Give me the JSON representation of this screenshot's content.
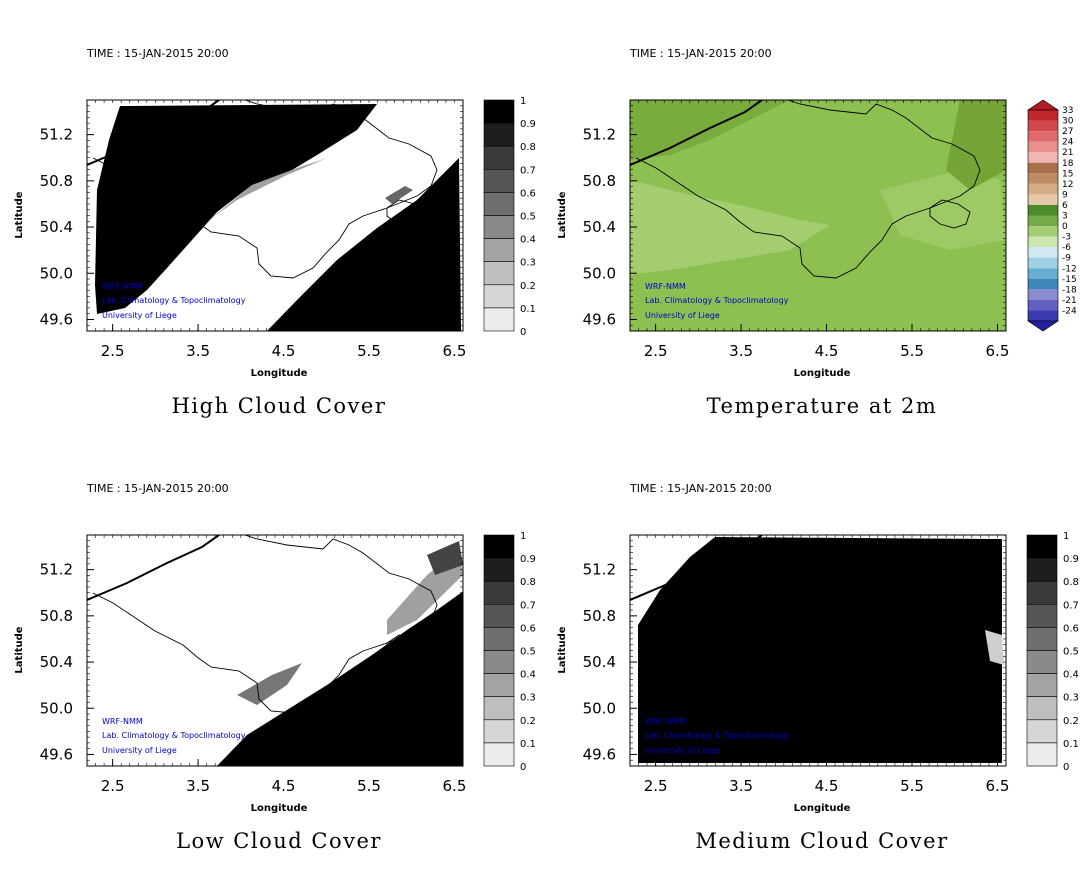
{
  "chart_data": [
    {
      "type": "heatmap",
      "time_label": "TIME : 15-JAN-2015 20:00",
      "title": "High Cloud Cover",
      "xlabel": "Longitude",
      "ylabel": "Latitude",
      "xticks": [
        "2.5",
        "3.5",
        "4.5",
        "5.5",
        "6.5"
      ],
      "yticks": [
        "51.2",
        "50.8",
        "50.4",
        "50.0",
        "49.6"
      ],
      "xlim": [
        2.2,
        6.6
      ],
      "ylim": [
        49.5,
        51.5
      ],
      "colorbar": [
        "1",
        "0.9",
        "0.8",
        "0.7",
        "0.6",
        "0.5",
        "0.4",
        "0.3",
        "0.2",
        "0.1",
        "0"
      ],
      "credits": [
        "WRF-NMM",
        "Lab. Climatology & Topoclimatology",
        "University of Liege"
      ]
    },
    {
      "type": "heatmap",
      "time_label": "TIME : 15-JAN-2015 20:00",
      "title": "Temperature at 2m",
      "xlabel": "Longitude",
      "ylabel": "Latitude",
      "xticks": [
        "2.5",
        "3.5",
        "4.5",
        "5.5",
        "6.5"
      ],
      "yticks": [
        "51.2",
        "50.8",
        "50.4",
        "50.0",
        "49.6"
      ],
      "xlim": [
        2.2,
        6.6
      ],
      "ylim": [
        49.5,
        51.5
      ],
      "colorbar": [
        "33",
        "30",
        "27",
        "24",
        "21",
        "18",
        "15",
        "12",
        "9",
        "6",
        "3",
        "0",
        "-3",
        "-6",
        "-9",
        "-12",
        "-15",
        "-18",
        "-21",
        "-24"
      ],
      "credits": [
        "WRF-NMM",
        "Lab. Climatology & Topoclimatology",
        "University of Liege"
      ]
    },
    {
      "type": "heatmap",
      "time_label": "TIME : 15-JAN-2015 20:00",
      "title": "Low Cloud Cover",
      "xlabel": "Longitude",
      "ylabel": "Latitude",
      "xticks": [
        "2.5",
        "3.5",
        "4.5",
        "5.5",
        "6.5"
      ],
      "yticks": [
        "51.2",
        "50.8",
        "50.4",
        "50.0",
        "49.6"
      ],
      "xlim": [
        2.2,
        6.6
      ],
      "ylim": [
        49.5,
        51.5
      ],
      "colorbar": [
        "1",
        "0.9",
        "0.8",
        "0.7",
        "0.6",
        "0.5",
        "0.4",
        "0.3",
        "0.2",
        "0.1",
        "0"
      ],
      "credits": [
        "WRF-NMM",
        "Lab. Climatology & Topoclimatology",
        "University of Liege"
      ]
    },
    {
      "type": "heatmap",
      "time_label": "TIME : 15-JAN-2015 20:00",
      "title": "Medium Cloud Cover",
      "xlabel": "Longitude",
      "ylabel": "Latitude",
      "xticks": [
        "2.5",
        "3.5",
        "4.5",
        "5.5",
        "6.5"
      ],
      "yticks": [
        "51.2",
        "50.8",
        "50.4",
        "50.0",
        "49.6"
      ],
      "xlim": [
        2.2,
        6.6
      ],
      "ylim": [
        49.5,
        51.5
      ],
      "colorbar": [
        "1",
        "0.9",
        "0.8",
        "0.7",
        "0.6",
        "0.5",
        "0.4",
        "0.3",
        "0.2",
        "0.1",
        "0"
      ],
      "credits": [
        "WRF-NMM",
        "Lab. Climatology & Topoclimatology",
        "University of Liege"
      ]
    }
  ]
}
